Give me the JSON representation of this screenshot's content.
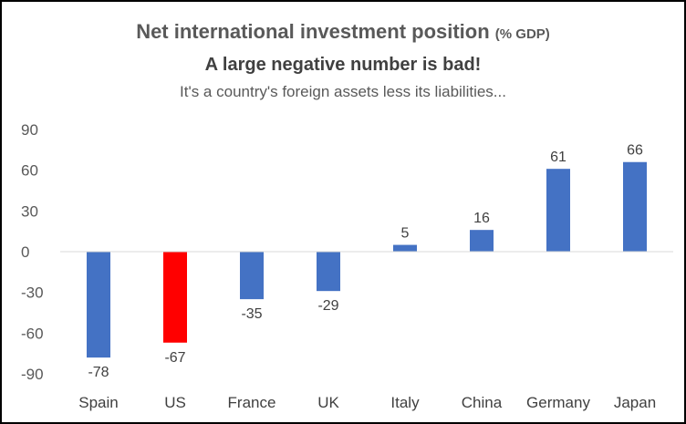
{
  "chart_data": {
    "type": "bar",
    "title": "Net international investment position",
    "title_unit": "(% GDP)",
    "subtitle": "A large negative number is bad!",
    "note": "It's a country's foreign assets less its liabilities...",
    "categories": [
      "Spain",
      "US",
      "France",
      "UK",
      "Italy",
      "China",
      "Germany",
      "Japan"
    ],
    "values": [
      -78,
      -67,
      -35,
      -29,
      5,
      16,
      61,
      66
    ],
    "colors": [
      "#4472C4",
      "#FF0000",
      "#4472C4",
      "#4472C4",
      "#4472C4",
      "#4472C4",
      "#4472C4",
      "#4472C4"
    ],
    "yticks": [
      "90",
      "60",
      "30",
      "0",
      "-30",
      "-60",
      "-90"
    ],
    "ylim": [
      -90,
      90
    ],
    "grid": false,
    "legend": "none"
  }
}
